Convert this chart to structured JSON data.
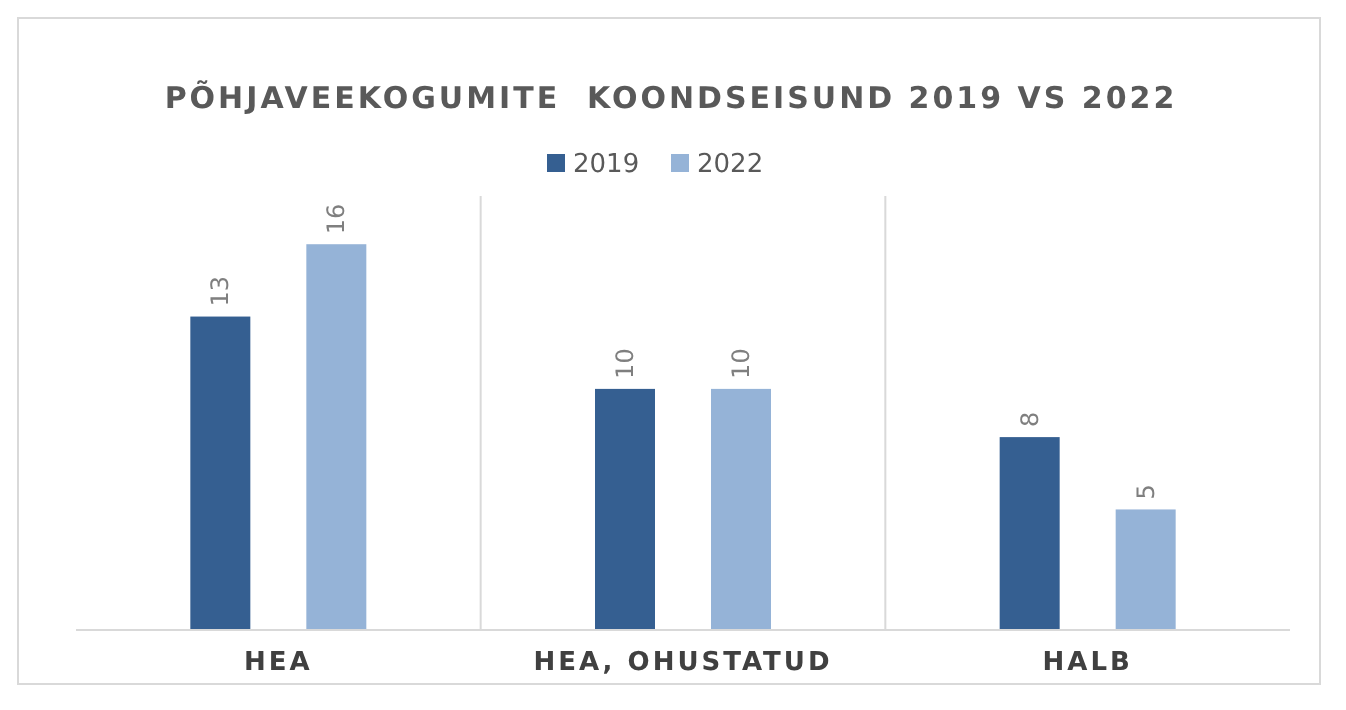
{
  "chart_data": {
    "type": "bar",
    "title": "PÕHJAVEEKOGUMITE  KOONDSEISUND 2019 VS 2022",
    "categories": [
      "HEA",
      "HEA, OHUSTATUD",
      "HALB"
    ],
    "series": [
      {
        "name": "2019",
        "color": "#355f91",
        "values": [
          13,
          10,
          8
        ]
      },
      {
        "name": "2022",
        "color": "#95b3d7",
        "values": [
          16,
          10,
          5
        ]
      }
    ],
    "ylim": [
      0,
      18
    ],
    "tick_labels": "x",
    "grid": "x",
    "legend": "top",
    "data_labels": true
  }
}
